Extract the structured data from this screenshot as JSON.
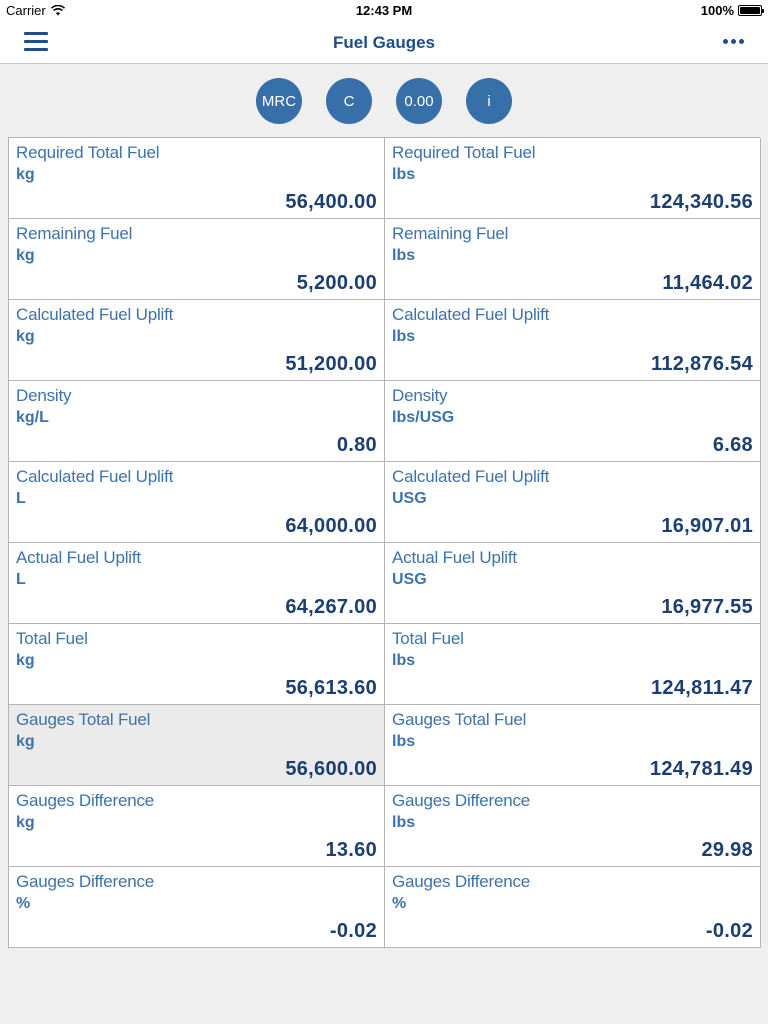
{
  "status_bar": {
    "carrier": "Carrier",
    "time": "12:43 PM",
    "battery": "100%"
  },
  "nav": {
    "title": "Fuel Gauges",
    "menu_icon": "hamburger-menu-icon",
    "more_icon": "more-ellipsis-icon"
  },
  "toolbar": {
    "buttons": [
      "MRC",
      "C",
      "0.00",
      "i"
    ]
  },
  "colors": {
    "accent": "#1d4e89",
    "button": "#3770a8",
    "label": "#3d72ab",
    "value": "#1c3f73",
    "background": "#efeff0",
    "selected_cell": "#ebebec"
  },
  "rows": [
    {
      "left": {
        "label": "Required Total Fuel",
        "unit": "kg",
        "value": "56,400.00"
      },
      "right": {
        "label": "Required Total Fuel",
        "unit": "lbs",
        "value": "124,340.56"
      }
    },
    {
      "left": {
        "label": "Remaining Fuel",
        "unit": "kg",
        "value": "5,200.00"
      },
      "right": {
        "label": "Remaining Fuel",
        "unit": "lbs",
        "value": "11,464.02"
      }
    },
    {
      "left": {
        "label": "Calculated Fuel Uplift",
        "unit": "kg",
        "value": "51,200.00"
      },
      "right": {
        "label": "Calculated Fuel Uplift",
        "unit": "lbs",
        "value": "112,876.54"
      }
    },
    {
      "left": {
        "label": "Density",
        "unit": "kg/L",
        "value": "0.80"
      },
      "right": {
        "label": "Density",
        "unit": "lbs/USG",
        "value": "6.68"
      }
    },
    {
      "left": {
        "label": "Calculated Fuel Uplift",
        "unit": "L",
        "value": "64,000.00"
      },
      "right": {
        "label": "Calculated Fuel Uplift",
        "unit": "USG",
        "value": "16,907.01"
      }
    },
    {
      "left": {
        "label": "Actual Fuel Uplift",
        "unit": "L",
        "value": "64,267.00"
      },
      "right": {
        "label": "Actual Fuel Uplift",
        "unit": "USG",
        "value": "16,977.55"
      }
    },
    {
      "left": {
        "label": "Total Fuel",
        "unit": "kg",
        "value": "56,613.60"
      },
      "right": {
        "label": "Total Fuel",
        "unit": "lbs",
        "value": "124,811.47"
      }
    },
    {
      "left": {
        "label": "Gauges Total Fuel",
        "unit": "kg",
        "value": "56,600.00"
      },
      "right": {
        "label": "Gauges Total Fuel",
        "unit": "lbs",
        "value": "124,781.49"
      }
    },
    {
      "left": {
        "label": "Gauges Difference",
        "unit": "kg",
        "value": "13.60"
      },
      "right": {
        "label": "Gauges Difference",
        "unit": "lbs",
        "value": "29.98"
      }
    },
    {
      "left": {
        "label": "Gauges Difference",
        "unit": "%",
        "value": "-0.02"
      },
      "right": {
        "label": "Gauges Difference",
        "unit": "%",
        "value": "-0.02"
      }
    }
  ]
}
